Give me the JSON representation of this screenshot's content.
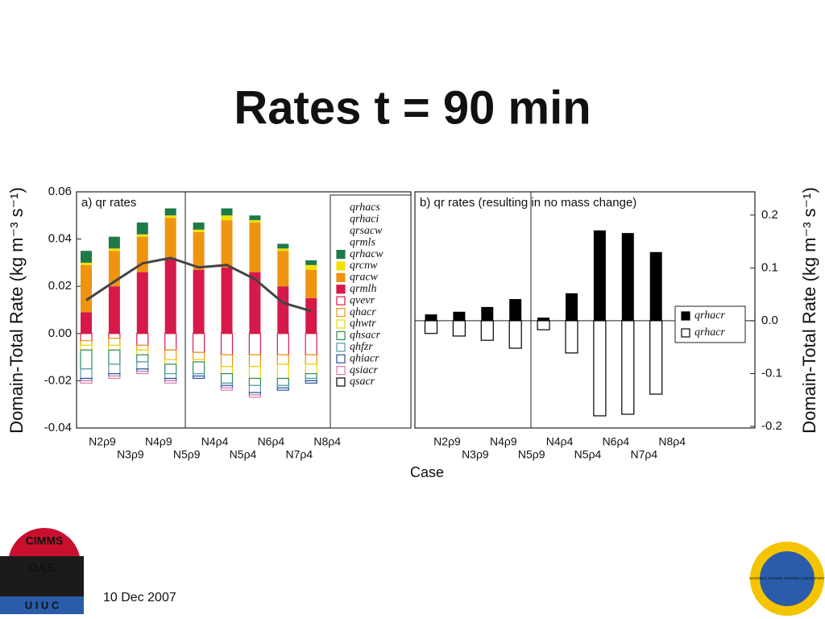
{
  "title": "Rates   t = 90 min",
  "footer": {
    "date": "10 Dec 2007"
  },
  "logos": {
    "left": [
      "CIMMS",
      "DAS",
      "U I U C"
    ],
    "right": "NATIONAL SEVERE STORMS LABORATORY"
  },
  "axis_labels": {
    "left": "Domain-Total Rate (kg m⁻³ s⁻¹)",
    "right": "Domain-Total Rate (kg m⁻³ s⁻¹)",
    "x": "Case"
  },
  "chart_data": [
    {
      "type": "bar",
      "stacked": true,
      "panel_label": "a) qr rates",
      "categories": [
        "N2ρ9",
        "N3ρ9",
        "N4ρ9",
        "N5ρ9",
        "N4ρ4",
        "N5ρ4",
        "N6ρ4",
        "N7ρ4",
        "N8ρ4"
      ],
      "ylim": [
        -0.04,
        0.06
      ],
      "yticks": [
        0.06,
        0.04,
        0.02,
        {
          "value": 0,
          "label": "0.00"
        },
        -0.02,
        -0.04
      ],
      "yaxis_side": "left",
      "series": [
        {
          "name": "qrhacs",
          "color": null,
          "values": [
            0,
            0,
            0,
            0,
            0,
            0,
            0,
            0,
            0
          ]
        },
        {
          "name": "qrhaci",
          "color": null,
          "values": [
            0,
            0,
            0,
            0,
            0,
            0,
            0,
            0,
            0
          ]
        },
        {
          "name": "qrsacw",
          "color": null,
          "values": [
            0,
            0,
            0,
            0,
            0,
            0,
            0,
            0,
            0
          ]
        },
        {
          "name": "qrmls",
          "color": null,
          "values": [
            0,
            0,
            0,
            0,
            0,
            0,
            0,
            0,
            0
          ]
        },
        {
          "name": "qrhacw",
          "color": "#1f7a4a",
          "values": [
            0.005,
            0.005,
            0.005,
            0.003,
            0.003,
            0.003,
            0.002,
            0.002,
            0.002
          ]
        },
        {
          "name": "qrcnw",
          "color": "#f2e200",
          "values": [
            0.001,
            0.001,
            0.001,
            0.001,
            0.001,
            0.002,
            0.001,
            0.001,
            0.002
          ]
        },
        {
          "name": "qracw",
          "color": "#ef9410",
          "values": [
            0.02,
            0.015,
            0.015,
            0.017,
            0.016,
            0.02,
            0.021,
            0.015,
            0.012
          ]
        },
        {
          "name": "qrmlh",
          "color": "#d7194a",
          "values": [
            0.009,
            0.02,
            0.026,
            0.032,
            0.027,
            0.028,
            0.026,
            0.02,
            0.015
          ]
        },
        {
          "name": "qvevr",
          "color": "#d7194a",
          "values": [
            -0.003,
            -0.002,
            -0.005,
            -0.007,
            -0.008,
            -0.009,
            -0.009,
            -0.009,
            -0.009
          ]
        },
        {
          "name": "qhacr",
          "color": "#ef9410",
          "values": [
            -0.002,
            -0.003,
            -0.002,
            -0.004,
            -0.003,
            -0.005,
            -0.005,
            -0.004,
            -0.004
          ]
        },
        {
          "name": "qhwtr",
          "color": "#e8d800",
          "values": [
            -0.002,
            -0.002,
            -0.002,
            -0.002,
            -0.001,
            -0.003,
            -0.005,
            -0.006,
            -0.004
          ]
        },
        {
          "name": "qhsacr",
          "color": "#2e8b57",
          "values": [
            -0.008,
            -0.006,
            -0.003,
            -0.004,
            -0.005,
            -0.004,
            -0.003,
            -0.003,
            -0.002
          ]
        },
        {
          "name": "qhfzr",
          "color": "#4f9aa8",
          "values": [
            -0.004,
            -0.004,
            -0.003,
            -0.002,
            -0.001,
            -0.001,
            -0.003,
            -0.001,
            -0.001
          ]
        },
        {
          "name": "qhiacr",
          "color": "#2a4ea0",
          "values": [
            -0.001,
            -0.001,
            -0.001,
            -0.001,
            -0.001,
            -0.001,
            -0.001,
            -0.001,
            -0.001
          ]
        },
        {
          "name": "qsiacr",
          "color": "#d97aa6",
          "values": [
            -0.001,
            -0.001,
            -0.001,
            -0.001,
            0,
            -0.001,
            -0.001,
            0,
            0
          ]
        },
        {
          "name": "qsacr",
          "color": "#000000",
          "values": [
            0,
            0,
            0,
            0,
            0,
            0,
            0,
            0,
            0
          ]
        }
      ],
      "line": {
        "color": "#444444",
        "values": [
          0.0141,
          0.022,
          0.0297,
          0.032,
          0.028,
          0.029,
          0.023,
          0.013,
          0.0095
        ]
      }
    },
    {
      "type": "bar",
      "stacked": true,
      "panel_label": "b) qr rates (resulting in no mass change)",
      "categories": [
        "N2ρ9",
        "N3ρ9",
        "N4ρ9",
        "N5ρ9",
        "N4ρ4",
        "N5ρ4",
        "N6ρ4",
        "N7ρ4",
        "N8ρ4"
      ],
      "ylim": [
        -0.203,
        0.244
      ],
      "yticks": [
        0.2,
        0.1,
        {
          "value": 0,
          "label": "0.0"
        },
        -0.1,
        -0.2
      ],
      "yaxis_side": "right",
      "series": [
        {
          "name": "qrhacr",
          "color": "#000000",
          "values": [
            0.012,
            0.017,
            0.026,
            0.041,
            0.006,
            0.052,
            0.171,
            0.166,
            0.13
          ]
        },
        {
          "name": "qrhacr",
          "color": "#000000",
          "values": [
            -0.024,
            -0.029,
            -0.037,
            -0.052,
            -0.017,
            -0.061,
            -0.18,
            -0.177,
            -0.139
          ]
        }
      ]
    }
  ]
}
